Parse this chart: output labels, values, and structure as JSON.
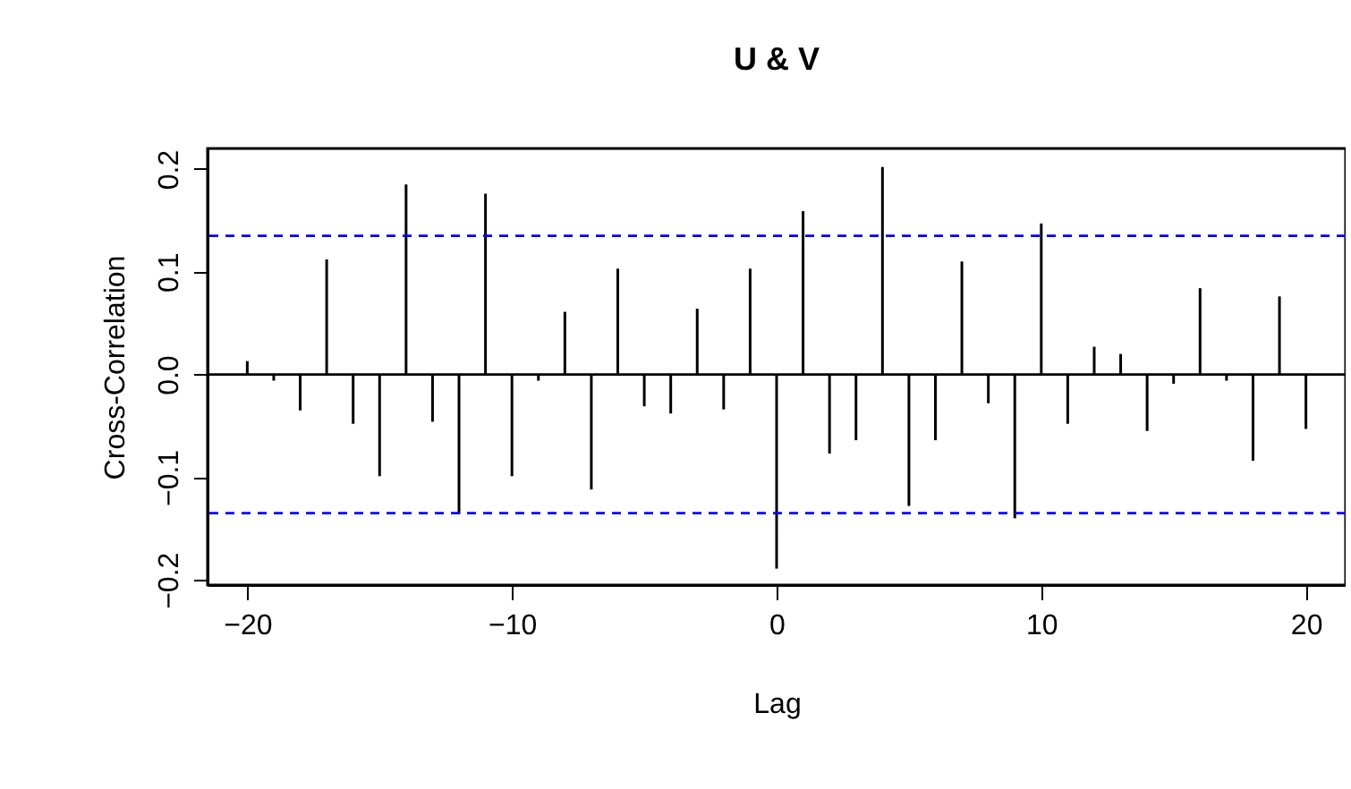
{
  "chart_data": {
    "type": "bar",
    "title": "U & V",
    "xlabel": "Lag",
    "ylabel": "Cross-Correlation",
    "x": [
      -20,
      -19,
      -18,
      -17,
      -16,
      -15,
      -14,
      -13,
      -12,
      -11,
      -10,
      -9,
      -8,
      -7,
      -6,
      -5,
      -4,
      -3,
      -2,
      -1,
      0,
      1,
      2,
      3,
      4,
      5,
      6,
      7,
      8,
      9,
      10,
      11,
      12,
      13,
      14,
      15,
      16,
      17,
      18,
      19,
      20
    ],
    "series": [
      {
        "color": "#000000",
        "values": [
          0.013,
          -0.006,
          -0.035,
          0.112,
          -0.048,
          -0.099,
          0.185,
          -0.046,
          -0.136,
          0.176,
          -0.099,
          -0.006,
          0.061,
          -0.112,
          0.103,
          -0.031,
          -0.038,
          0.064,
          -0.034,
          0.103,
          -0.189,
          0.159,
          -0.077,
          -0.064,
          0.202,
          -0.128,
          -0.064,
          0.11,
          -0.028,
          -0.14,
          0.147,
          -0.048,
          0.027,
          0.02,
          -0.055,
          -0.009,
          0.084,
          -0.006,
          -0.084,
          0.076,
          -0.053
        ]
      }
    ],
    "xlim": [
      -21.5,
      21.5
    ],
    "ylim": [
      -0.205,
      0.22
    ],
    "xticks": [
      -20,
      -10,
      0,
      10,
      20
    ],
    "yticks": [
      -0.2,
      -0.1,
      {
        "value": 0,
        "label": "0.0"
      },
      0.1,
      0.2
    ],
    "ref_lines": [
      {
        "axis": "y",
        "value": 0,
        "color": "#000000",
        "line_style": "solid"
      },
      {
        "axis": "y",
        "value": 0.135,
        "color": "#0000ff",
        "line_style": "dashed"
      },
      {
        "axis": "y",
        "value": -0.135,
        "color": "#0000ff",
        "line_style": "dashed"
      }
    ],
    "grid": false
  }
}
